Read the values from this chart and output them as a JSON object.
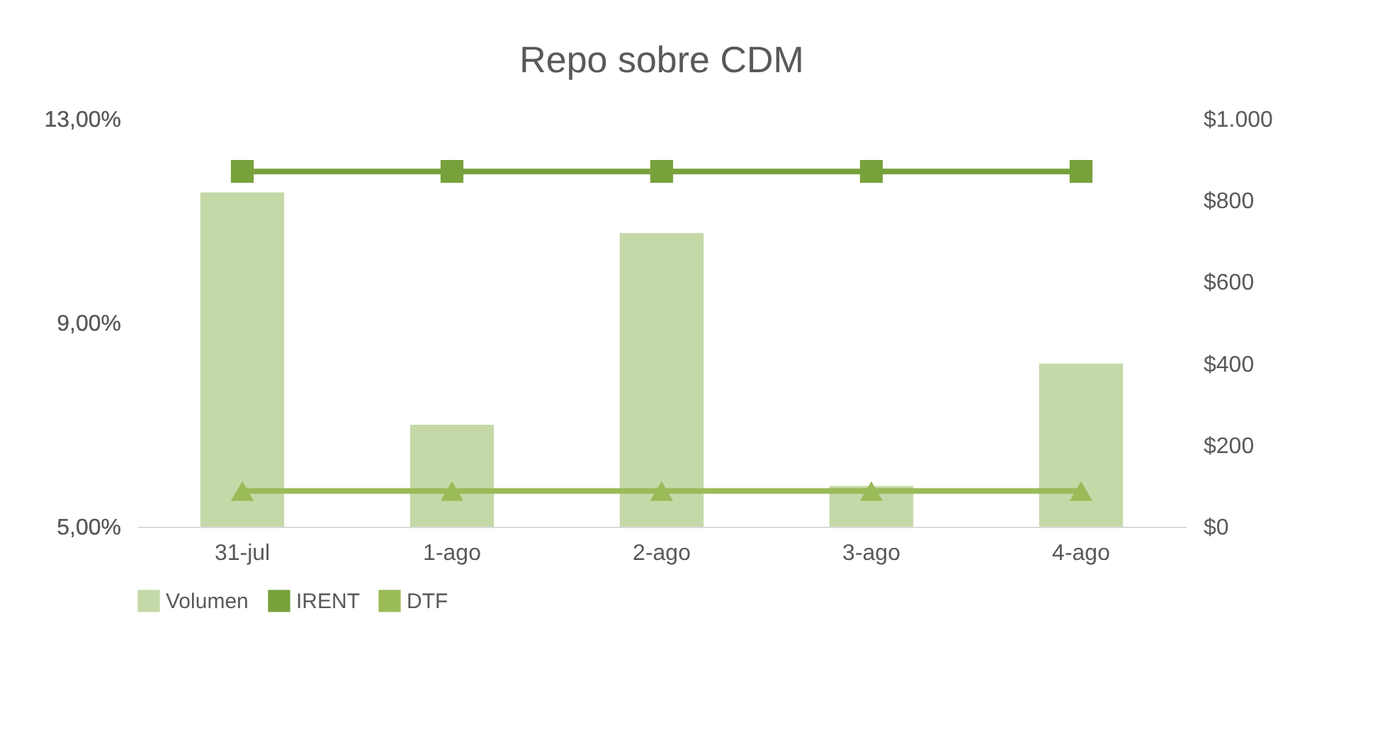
{
  "chart_data": {
    "type": "bar",
    "title": "Repo sobre CDM",
    "categories": [
      "31-jul",
      "1-ago",
      "2-ago",
      "3-ago",
      "4-ago"
    ],
    "series": [
      {
        "name": "Volumen",
        "axis": "y2",
        "color": "#c5d9a8",
        "values": [
          820,
          250,
          720,
          100,
          400
        ]
      },
      {
        "name": "IRENT",
        "type": "line",
        "marker": "square",
        "color": "#77a13b",
        "values": [
          11.97,
          11.97,
          11.97,
          11.97,
          11.97
        ]
      },
      {
        "name": "DTF",
        "type": "line",
        "marker": "triangle",
        "color": "#9bbb59",
        "values": [
          5.7,
          5.7,
          5.7,
          5.7,
          5.7
        ]
      }
    ],
    "ylim": [
      5,
      13
    ],
    "yticks": [
      {
        "value": 5,
        "label": "5,00%"
      },
      {
        "value": 9,
        "label": "9,00%"
      },
      {
        "value": 13,
        "label": "13,00%"
      }
    ],
    "y2lim": [
      0,
      1000
    ],
    "y2ticks": [
      {
        "value": 0,
        "label": "$0"
      },
      {
        "value": 200,
        "label": "$200"
      },
      {
        "value": 400,
        "label": "$400"
      },
      {
        "value": 600,
        "label": "$600"
      },
      {
        "value": 800,
        "label": "$800"
      },
      {
        "value": 1000,
        "label": "$1.000"
      }
    ],
    "grid": false,
    "legend": "bottom",
    "line_style": "solid"
  }
}
